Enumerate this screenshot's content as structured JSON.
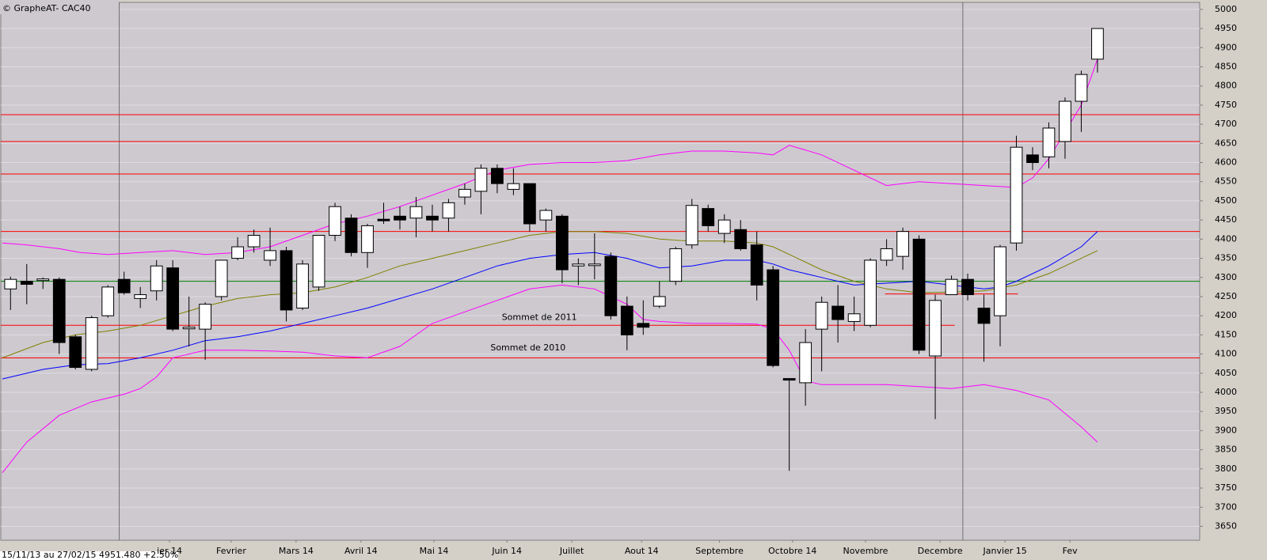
{
  "chart_data": {
    "type": "candlestick",
    "title": "© GrapheAT- CAC40",
    "info": "15/11/13 au 27/02/15  4951.480  +2.50%",
    "x": [
      0,
      1,
      2,
      3,
      4,
      5,
      6,
      7,
      8,
      9,
      10,
      11,
      12,
      13,
      14,
      15,
      16,
      17,
      18,
      19,
      20,
      21,
      22,
      23,
      24,
      25,
      26,
      27,
      28,
      29,
      30,
      31,
      32,
      33,
      34,
      35,
      36,
      37,
      38,
      39,
      40,
      41,
      42,
      43,
      44,
      45,
      46,
      47,
      48,
      49,
      50,
      51,
      52,
      53,
      54,
      55,
      56,
      57,
      58,
      59,
      60,
      61,
      62,
      63,
      64,
      65,
      66,
      67
    ],
    "open": [
      4270,
      4290,
      4292,
      4295,
      4145,
      4060,
      4200,
      4295,
      4245,
      4265,
      4325,
      4168,
      4165,
      4250,
      4350,
      4380,
      4345,
      4370,
      4220,
      4275,
      4410,
      4455,
      4365,
      4452,
      4460,
      4455,
      4460,
      4455,
      4510,
      4525,
      4585,
      4530,
      4545,
      4450,
      4460,
      4330,
      4334,
      4355,
      4225,
      4180,
      4225,
      4290,
      4385,
      4480,
      4415,
      4425,
      4385,
      4320,
      4036,
      4025,
      4165,
      4225,
      4185,
      4175,
      4345,
      4355,
      4400,
      4095,
      4255,
      4295,
      4220,
      4200,
      4390,
      4620,
      4615,
      4655,
      4760,
      4870
    ],
    "high": [
      4302,
      4335,
      4300,
      4300,
      4150,
      4200,
      4280,
      4315,
      4275,
      4345,
      4345,
      4250,
      4235,
      4345,
      4405,
      4425,
      4430,
      4380,
      4345,
      4410,
      4495,
      4465,
      4440,
      4495,
      4485,
      4510,
      4490,
      4505,
      4545,
      4595,
      4595,
      4585,
      4545,
      4480,
      4465,
      4350,
      4415,
      4365,
      4250,
      4240,
      4290,
      4380,
      4505,
      4490,
      4465,
      4450,
      4420,
      4330,
      4036,
      4165,
      4250,
      4280,
      4250,
      4350,
      4400,
      4430,
      4410,
      4255,
      4305,
      4310,
      4255,
      4385,
      4670,
      4640,
      4705,
      4770,
      4840,
      4950
    ],
    "low": [
      4215,
      4230,
      4270,
      4100,
      4060,
      4055,
      4195,
      4255,
      4220,
      4240,
      4160,
      4120,
      4085,
      4240,
      4345,
      4365,
      4330,
      4185,
      4215,
      4265,
      4395,
      4355,
      4325,
      4440,
      4425,
      4405,
      4420,
      4420,
      4490,
      4465,
      4520,
      4515,
      4420,
      4420,
      4285,
      4280,
      4295,
      4190,
      4110,
      4150,
      4220,
      4280,
      4375,
      4420,
      4390,
      4370,
      4240,
      4065,
      3795,
      3965,
      4055,
      4130,
      4160,
      4170,
      4330,
      4320,
      4100,
      3930,
      4255,
      4240,
      4080,
      4120,
      4370,
      4580,
      4585,
      4610,
      4680,
      4835
    ],
    "close": [
      4295,
      4282,
      4296,
      4130,
      4065,
      4195,
      4275,
      4260,
      4255,
      4330,
      4165,
      4170,
      4230,
      4345,
      4380,
      4410,
      4370,
      4215,
      4335,
      4410,
      4485,
      4365,
      4435,
      4450,
      4450,
      4485,
      4450,
      4495,
      4530,
      4585,
      4545,
      4545,
      4440,
      4475,
      4320,
      4335,
      4335,
      4200,
      4150,
      4170,
      4250,
      4375,
      4488,
      4435,
      4450,
      4375,
      4280,
      4070,
      4035,
      4130,
      4235,
      4190,
      4205,
      4345,
      4375,
      4420,
      4110,
      4240,
      4295,
      4255,
      4180,
      4380,
      4640,
      4600,
      4690,
      4760,
      4830,
      4950
    ],
    "up_color": "#ffffff",
    "down_color": "#000000",
    "lines": [
      {
        "color": "#ff00ff",
        "x": [
          -0.5,
          1,
          3,
          4.3,
          6,
          8,
          10,
          12,
          14,
          16,
          18,
          20,
          22,
          24,
          26,
          28,
          30,
          32,
          34,
          36,
          38,
          40,
          42,
          44,
          46,
          47,
          48,
          50,
          52,
          54,
          56,
          58,
          60,
          62,
          63,
          64,
          65,
          66,
          67
        ],
        "values": [
          4390,
          4385,
          4375,
          4365,
          4360,
          4365,
          4370,
          4360,
          4365,
          4380,
          4410,
          4440,
          4460,
          4485,
          4515,
          4545,
          4580,
          4595,
          4600,
          4600,
          4605,
          4620,
          4630,
          4630,
          4625,
          4620,
          4645,
          4620,
          4580,
          4540,
          4550,
          4545,
          4540,
          4535,
          4560,
          4610,
          4680,
          4750,
          4870
        ]
      },
      {
        "color": "#ff00ff",
        "x": [
          -0.5,
          1,
          3,
          5,
          7,
          8,
          9,
          10,
          12,
          14,
          16,
          18,
          20,
          22,
          24,
          26,
          28,
          30,
          32,
          34,
          36,
          38,
          39,
          40,
          42,
          44,
          46,
          47,
          48,
          49,
          50,
          52,
          54,
          56,
          58,
          60,
          62,
          64,
          66,
          67
        ],
        "values": [
          3790,
          3870,
          3940,
          3975,
          3995,
          4010,
          4040,
          4090,
          4110,
          4110,
          4108,
          4105,
          4095,
          4090,
          4120,
          4180,
          4210,
          4240,
          4270,
          4280,
          4270,
          4230,
          4190,
          4185,
          4180,
          4180,
          4178,
          4165,
          4110,
          4030,
          4020,
          4020,
          4020,
          4015,
          4010,
          4020,
          4005,
          3980,
          3910,
          3870
        ]
      },
      {
        "color": "#0000ff",
        "x": [
          -0.5,
          2,
          4,
          6,
          8,
          10,
          12,
          14,
          16,
          18,
          20,
          22,
          24,
          26,
          28,
          30,
          32,
          34,
          36,
          38,
          40,
          42,
          44,
          46,
          47,
          48,
          50,
          52,
          54,
          56,
          58,
          60,
          61,
          62,
          64,
          66,
          67
        ],
        "values": [
          4035,
          4060,
          4072,
          4075,
          4090,
          4110,
          4135,
          4145,
          4160,
          4180,
          4200,
          4220,
          4245,
          4270,
          4300,
          4330,
          4350,
          4360,
          4365,
          4350,
          4325,
          4330,
          4345,
          4345,
          4335,
          4320,
          4300,
          4280,
          4285,
          4290,
          4280,
          4270,
          4275,
          4290,
          4330,
          4380,
          4420
        ]
      },
      {
        "color": "#808000",
        "x": [
          -0.5,
          2,
          4,
          6,
          8,
          10,
          12,
          14,
          16,
          18,
          20,
          22,
          24,
          26,
          28,
          30,
          32,
          34,
          36,
          38,
          40,
          42,
          44,
          46,
          47,
          48,
          50,
          52,
          54,
          56,
          58,
          60,
          62,
          64,
          66,
          67
        ],
        "values": [
          4090,
          4130,
          4150,
          4160,
          4175,
          4200,
          4225,
          4245,
          4255,
          4260,
          4275,
          4300,
          4330,
          4350,
          4370,
          4390,
          4410,
          4420,
          4420,
          4415,
          4400,
          4395,
          4395,
          4390,
          4380,
          4360,
          4320,
          4290,
          4270,
          4260,
          4262,
          4265,
          4280,
          4310,
          4350,
          4370
        ]
      }
    ],
    "hlines": [
      {
        "value": 4725,
        "color": "#ff0000"
      },
      {
        "value": 4655,
        "color": "#ff0000"
      },
      {
        "value": 4570,
        "color": "#ff0000"
      },
      {
        "value": 4420,
        "color": "#ff0000"
      },
      {
        "value": 4290,
        "color": "#008000"
      },
      {
        "value": 4175,
        "color": "#ff0000",
        "xrange": [
          -0.6,
          58.2
        ]
      },
      {
        "value": 4090,
        "color": "#ff0000"
      },
      {
        "value": 4257,
        "color": "#ff0000",
        "xrange": [
          53.9,
          62.1
        ]
      }
    ],
    "vlines": [
      6.7,
      58.7
    ],
    "annotations": [
      {
        "text": "Sommet de 2011",
        "x": 32.6,
        "y": 4195
      },
      {
        "text": "Sommet de 2010",
        "x": 31.9,
        "y": 4116
      }
    ],
    "xlim": [
      -0.6,
      73.3
    ],
    "ylim": [
      3620,
      5010
    ],
    "xticks": [
      {
        "value": 9.8,
        "label": "ier 14"
      },
      {
        "value": 13.6,
        "label": "Fevrier"
      },
      {
        "value": 17.6,
        "label": "Mars 14"
      },
      {
        "value": 21.6,
        "label": "Avril 14"
      },
      {
        "value": 26.1,
        "label": "Mai 14"
      },
      {
        "value": 30.6,
        "label": "Juin 14"
      },
      {
        "value": 34.6,
        "label": "Juillet"
      },
      {
        "value": 38.9,
        "label": "Aout 14"
      },
      {
        "value": 43.7,
        "label": "Septembre"
      },
      {
        "value": 48.2,
        "label": "Octobre 14"
      },
      {
        "value": 52.7,
        "label": "Novembre"
      },
      {
        "value": 57.3,
        "label": "Decembre"
      },
      {
        "value": 61.3,
        "label": "Janvier 15"
      },
      {
        "value": 65.3,
        "label": "Fev"
      }
    ],
    "yticks": [
      3650,
      3700,
      3750,
      3800,
      3850,
      3900,
      3950,
      4000,
      4050,
      4100,
      4150,
      4200,
      4250,
      4300,
      4350,
      4400,
      4450,
      4500,
      4550,
      4600,
      4650,
      4700,
      4750,
      4800,
      4850,
      4900,
      4950,
      5000
    ],
    "grid": true
  }
}
